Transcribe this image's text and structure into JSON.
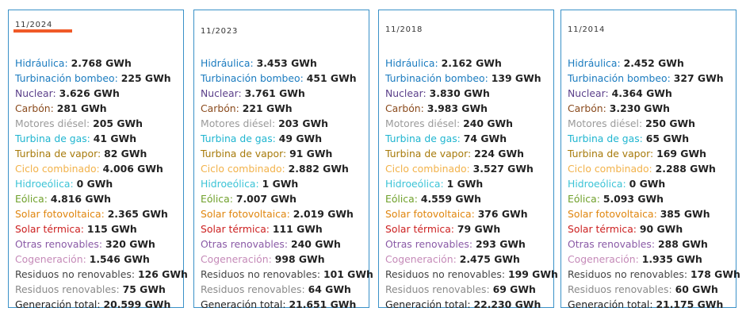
{
  "colors": {
    "card_border": "#3a91c8",
    "selected_underline": "#f05a28",
    "value": "#222222"
  },
  "categories": [
    {
      "label": "Hidráulica",
      "color": "#1a7bbf"
    },
    {
      "label": "Turbinación bombeo",
      "color": "#1a7bbf"
    },
    {
      "label": "Nuclear",
      "color": "#5b3f8a"
    },
    {
      "label": "Carbón",
      "color": "#8a4a1c"
    },
    {
      "label": "Motores diésel",
      "color": "#9a9a9a"
    },
    {
      "label": "Turbina de gas",
      "color": "#1fb5d0"
    },
    {
      "label": "Turbina de vapor",
      "color": "#a77a0a"
    },
    {
      "label": "Ciclo combinado",
      "color": "#f2b24a"
    },
    {
      "label": "Hidroeólica",
      "color": "#3bc3d6"
    },
    {
      "label": "Eólica",
      "color": "#6fa02a"
    },
    {
      "label": "Solar fotovoltaica",
      "color": "#e0860e"
    },
    {
      "label": "Solar térmica",
      "color": "#cc1f1f"
    },
    {
      "label": "Otras renovables",
      "color": "#8a5aa6"
    },
    {
      "label": "Cogeneración",
      "color": "#c58ab8"
    },
    {
      "label": "Residuos no renovables",
      "color": "#444444"
    },
    {
      "label": "Residuos renovables",
      "color": "#8a8a8a"
    },
    {
      "label": "Generación total",
      "color": "#222222"
    }
  ],
  "cards": [
    {
      "date": "11/2024",
      "selected": true,
      "values": [
        "2.768 GWh",
        "225 GWh",
        "3.626 GWh",
        "281 GWh",
        "205 GWh",
        "41 GWh",
        "82 GWh",
        "4.006 GWh",
        "0 GWh",
        "4.816 GWh",
        "2.365 GWh",
        "115 GWh",
        "320 GWh",
        "1.546 GWh",
        "126 GWh",
        "75 GWh",
        "20.599 GWh"
      ]
    },
    {
      "date": "11/2023",
      "selected": false,
      "values": [
        "3.453 GWh",
        "451 GWh",
        "3.761 GWh",
        "221 GWh",
        "203 GWh",
        "49 GWh",
        "91 GWh",
        "2.882 GWh",
        "1 GWh",
        "7.007 GWh",
        "2.019 GWh",
        "111 GWh",
        "240 GWh",
        "998 GWh",
        "101 GWh",
        "64 GWh",
        "21.651 GWh"
      ]
    },
    {
      "date": "11/2018",
      "selected": false,
      "values": [
        "2.162 GWh",
        "139 GWh",
        "3.830 GWh",
        "3.983 GWh",
        "240 GWh",
        "74 GWh",
        "224 GWh",
        "3.527 GWh",
        "1 GWh",
        "4.559 GWh",
        "376 GWh",
        "79 GWh",
        "293 GWh",
        "2.475 GWh",
        "199 GWh",
        "69 GWh",
        "22.230 GWh"
      ]
    },
    {
      "date": "11/2014",
      "selected": false,
      "values": [
        "2.452 GWh",
        "327 GWh",
        "4.364 GWh",
        "3.230 GWh",
        "250 GWh",
        "65 GWh",
        "169 GWh",
        "2.288 GWh",
        "0 GWh",
        "5.093 GWh",
        "385 GWh",
        "90 GWh",
        "288 GWh",
        "1.935 GWh",
        "178 GWh",
        "60 GWh",
        "21.175 GWh"
      ]
    }
  ]
}
